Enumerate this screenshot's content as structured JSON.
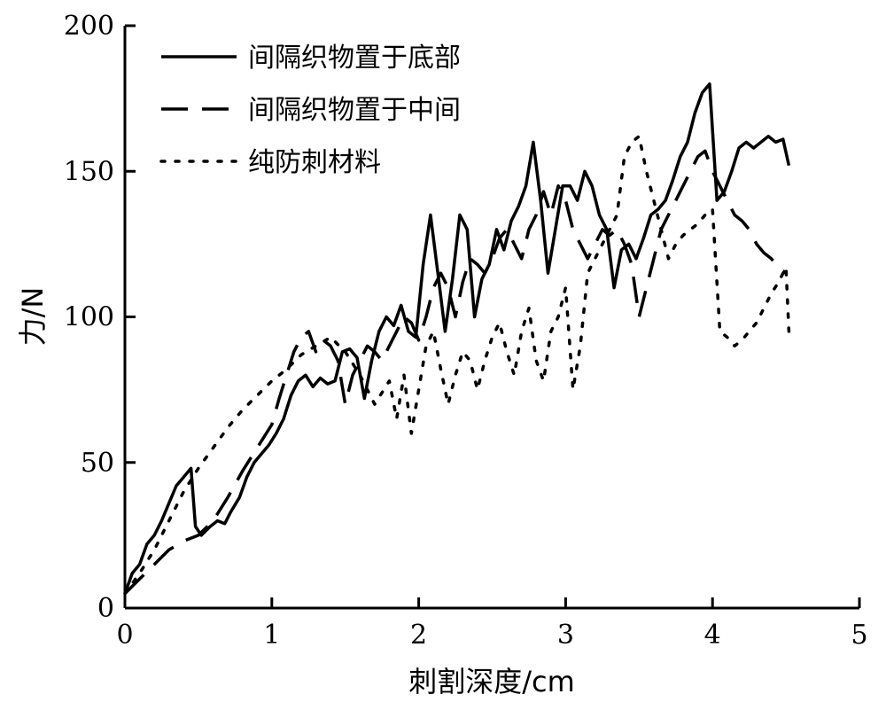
{
  "chart_data": {
    "type": "line",
    "xlabel": "刺割深度/cm",
    "ylabel": "力/N",
    "xlim": [
      0,
      5
    ],
    "ylim": [
      0,
      200
    ],
    "x_ticks": [
      0,
      1,
      2,
      3,
      4,
      5
    ],
    "y_ticks": [
      0,
      50,
      100,
      150,
      200
    ],
    "grid": false,
    "legend_position": "top-left",
    "series": [
      {
        "name": "间隔织物置于底部",
        "style": "solid",
        "color": "#000000",
        "points": [
          [
            0,
            5
          ],
          [
            0.05,
            12
          ],
          [
            0.1,
            15
          ],
          [
            0.15,
            22
          ],
          [
            0.2,
            25
          ],
          [
            0.25,
            30
          ],
          [
            0.3,
            36
          ],
          [
            0.35,
            42
          ],
          [
            0.4,
            45
          ],
          [
            0.45,
            48
          ],
          [
            0.48,
            28
          ],
          [
            0.52,
            25
          ],
          [
            0.58,
            28
          ],
          [
            0.63,
            30
          ],
          [
            0.68,
            29
          ],
          [
            0.72,
            33
          ],
          [
            0.78,
            38
          ],
          [
            0.83,
            45
          ],
          [
            0.88,
            50
          ],
          [
            0.93,
            53
          ],
          [
            0.98,
            56
          ],
          [
            1.03,
            60
          ],
          [
            1.08,
            65
          ],
          [
            1.13,
            73
          ],
          [
            1.18,
            78
          ],
          [
            1.23,
            80
          ],
          [
            1.28,
            76
          ],
          [
            1.33,
            79
          ],
          [
            1.38,
            77
          ],
          [
            1.43,
            78
          ],
          [
            1.48,
            88
          ],
          [
            1.53,
            89
          ],
          [
            1.58,
            86
          ],
          [
            1.63,
            72
          ],
          [
            1.68,
            85
          ],
          [
            1.73,
            95
          ],
          [
            1.78,
            100
          ],
          [
            1.83,
            97
          ],
          [
            1.88,
            104
          ],
          [
            1.93,
            95
          ],
          [
            1.98,
            93
          ],
          [
            2.03,
            118
          ],
          [
            2.08,
            135
          ],
          [
            2.13,
            115
          ],
          [
            2.18,
            95
          ],
          [
            2.23,
            113
          ],
          [
            2.28,
            135
          ],
          [
            2.33,
            130
          ],
          [
            2.38,
            100
          ],
          [
            2.43,
            113
          ],
          [
            2.48,
            118
          ],
          [
            2.53,
            130
          ],
          [
            2.58,
            123
          ],
          [
            2.63,
            133
          ],
          [
            2.68,
            138
          ],
          [
            2.73,
            145
          ],
          [
            2.78,
            160
          ],
          [
            2.83,
            140
          ],
          [
            2.88,
            115
          ],
          [
            2.93,
            130
          ],
          [
            2.98,
            145
          ],
          [
            3.03,
            145
          ],
          [
            3.08,
            140
          ],
          [
            3.13,
            150
          ],
          [
            3.18,
            145
          ],
          [
            3.23,
            135
          ],
          [
            3.28,
            130
          ],
          [
            3.33,
            110
          ],
          [
            3.38,
            123
          ],
          [
            3.43,
            125
          ],
          [
            3.48,
            120
          ],
          [
            3.53,
            127
          ],
          [
            3.58,
            135
          ],
          [
            3.63,
            137
          ],
          [
            3.68,
            140
          ],
          [
            3.73,
            147
          ],
          [
            3.78,
            155
          ],
          [
            3.83,
            160
          ],
          [
            3.88,
            170
          ],
          [
            3.93,
            177
          ],
          [
            3.98,
            180
          ],
          [
            4.03,
            140
          ],
          [
            4.08,
            143
          ],
          [
            4.13,
            150
          ],
          [
            4.18,
            158
          ],
          [
            4.23,
            160
          ],
          [
            4.28,
            158
          ],
          [
            4.33,
            160
          ],
          [
            4.38,
            162
          ],
          [
            4.43,
            160
          ],
          [
            4.48,
            161
          ],
          [
            4.52,
            152
          ]
        ]
      },
      {
        "name": "间隔织物置于中间",
        "style": "dashed",
        "color": "#000000",
        "points": [
          [
            0,
            5
          ],
          [
            0.1,
            10
          ],
          [
            0.2,
            15
          ],
          [
            0.3,
            20
          ],
          [
            0.4,
            23
          ],
          [
            0.5,
            25
          ],
          [
            0.6,
            30
          ],
          [
            0.7,
            38
          ],
          [
            0.8,
            47
          ],
          [
            0.9,
            55
          ],
          [
            1.0,
            63
          ],
          [
            1.05,
            72
          ],
          [
            1.1,
            80
          ],
          [
            1.15,
            88
          ],
          [
            1.2,
            93
          ],
          [
            1.25,
            95
          ],
          [
            1.3,
            88
          ],
          [
            1.35,
            92
          ],
          [
            1.4,
            90
          ],
          [
            1.45,
            85
          ],
          [
            1.5,
            70
          ],
          [
            1.55,
            80
          ],
          [
            1.6,
            85
          ],
          [
            1.65,
            90
          ],
          [
            1.7,
            88
          ],
          [
            1.75,
            85
          ],
          [
            1.8,
            90
          ],
          [
            1.85,
            95
          ],
          [
            1.9,
            100
          ],
          [
            1.95,
            98
          ],
          [
            2.0,
            92
          ],
          [
            2.05,
            100
          ],
          [
            2.1,
            110
          ],
          [
            2.15,
            115
          ],
          [
            2.2,
            110
          ],
          [
            2.25,
            100
          ],
          [
            2.3,
            112
          ],
          [
            2.35,
            120
          ],
          [
            2.4,
            118
          ],
          [
            2.45,
            115
          ],
          [
            2.5,
            120
          ],
          [
            2.55,
            127
          ],
          [
            2.6,
            130
          ],
          [
            2.65,
            125
          ],
          [
            2.7,
            120
          ],
          [
            2.75,
            130
          ],
          [
            2.8,
            135
          ],
          [
            2.85,
            143
          ],
          [
            2.9,
            135
          ],
          [
            2.95,
            145
          ],
          [
            3.0,
            140
          ],
          [
            3.05,
            130
          ],
          [
            3.1,
            125
          ],
          [
            3.15,
            120
          ],
          [
            3.2,
            125
          ],
          [
            3.25,
            130
          ],
          [
            3.3,
            128
          ],
          [
            3.35,
            130
          ],
          [
            3.4,
            125
          ],
          [
            3.45,
            118
          ],
          [
            3.5,
            100
          ],
          [
            3.55,
            110
          ],
          [
            3.6,
            120
          ],
          [
            3.65,
            130
          ],
          [
            3.7,
            135
          ],
          [
            3.75,
            140
          ],
          [
            3.8,
            145
          ],
          [
            3.85,
            150
          ],
          [
            3.9,
            155
          ],
          [
            3.95,
            157
          ],
          [
            4.0,
            150
          ],
          [
            4.05,
            145
          ],
          [
            4.1,
            140
          ],
          [
            4.15,
            135
          ],
          [
            4.2,
            133
          ],
          [
            4.25,
            130
          ],
          [
            4.3,
            125
          ],
          [
            4.35,
            122
          ],
          [
            4.4,
            120
          ],
          [
            4.45,
            117
          ],
          [
            4.5,
            115
          ]
        ]
      },
      {
        "name": "纯防刺材料",
        "style": "dotted",
        "color": "#000000",
        "points": [
          [
            0,
            5
          ],
          [
            0.1,
            12
          ],
          [
            0.2,
            20
          ],
          [
            0.3,
            30
          ],
          [
            0.4,
            40
          ],
          [
            0.5,
            48
          ],
          [
            0.6,
            55
          ],
          [
            0.7,
            62
          ],
          [
            0.8,
            68
          ],
          [
            0.9,
            73
          ],
          [
            1.0,
            78
          ],
          [
            1.1,
            82
          ],
          [
            1.2,
            87
          ],
          [
            1.3,
            90
          ],
          [
            1.4,
            93
          ],
          [
            1.5,
            88
          ],
          [
            1.6,
            80
          ],
          [
            1.7,
            70
          ],
          [
            1.8,
            78
          ],
          [
            1.85,
            65
          ],
          [
            1.9,
            80
          ],
          [
            1.95,
            60
          ],
          [
            2.0,
            75
          ],
          [
            2.05,
            90
          ],
          [
            2.1,
            95
          ],
          [
            2.15,
            82
          ],
          [
            2.2,
            70
          ],
          [
            2.25,
            80
          ],
          [
            2.3,
            88
          ],
          [
            2.35,
            85
          ],
          [
            2.4,
            75
          ],
          [
            2.45,
            85
          ],
          [
            2.5,
            93
          ],
          [
            2.55,
            98
          ],
          [
            2.6,
            88
          ],
          [
            2.65,
            80
          ],
          [
            2.7,
            95
          ],
          [
            2.75,
            103
          ],
          [
            2.8,
            85
          ],
          [
            2.85,
            78
          ],
          [
            2.9,
            95
          ],
          [
            2.95,
            100
          ],
          [
            3.0,
            110
          ],
          [
            3.05,
            75
          ],
          [
            3.1,
            90
          ],
          [
            3.15,
            115
          ],
          [
            3.2,
            120
          ],
          [
            3.25,
            125
          ],
          [
            3.3,
            130
          ],
          [
            3.35,
            135
          ],
          [
            3.4,
            155
          ],
          [
            3.45,
            160
          ],
          [
            3.5,
            162
          ],
          [
            3.55,
            150
          ],
          [
            3.6,
            140
          ],
          [
            3.65,
            130
          ],
          [
            3.7,
            120
          ],
          [
            3.75,
            125
          ],
          [
            3.8,
            128
          ],
          [
            3.85,
            130
          ],
          [
            3.9,
            132
          ],
          [
            3.95,
            135
          ],
          [
            4.0,
            137
          ],
          [
            4.05,
            95
          ],
          [
            4.1,
            93
          ],
          [
            4.15,
            90
          ],
          [
            4.2,
            92
          ],
          [
            4.25,
            95
          ],
          [
            4.3,
            98
          ],
          [
            4.35,
            103
          ],
          [
            4.4,
            108
          ],
          [
            4.45,
            112
          ],
          [
            4.5,
            117
          ],
          [
            4.52,
            95
          ]
        ]
      }
    ]
  }
}
